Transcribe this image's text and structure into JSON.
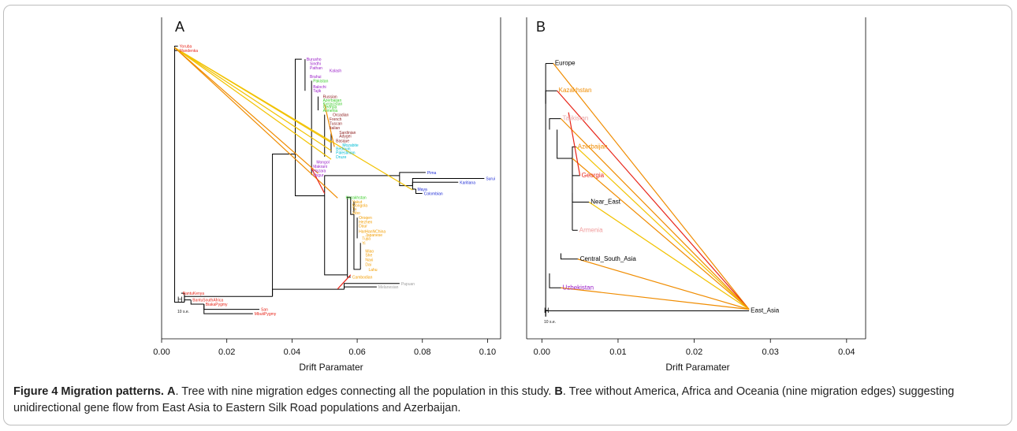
{
  "caption": {
    "title": "Figure 4 Migration patterns.",
    "a_label": "A",
    "a_text": ". Tree with nine migration edges connecting all the population in this study. ",
    "b_label": "B",
    "b_text": ". Tree without America, Africa and Oceania (nine migration edges) suggesting unidirectional gene flow from East Asia to Eastern Silk Road populations and Azerbaijan."
  },
  "colors": {
    "tree": "#000000",
    "edge_yellow": "#f2c200",
    "edge_orange": "#f08c00",
    "edge_red": "#e8261a",
    "africa": "#e8261a",
    "middle_east_europe": "#8b1a1a",
    "central_south_asia": "#9b20c8",
    "caucasus": "#3ccd2a",
    "oceania_cyan": "#00bcd4",
    "america": "#1d2bd6",
    "east_asia": "#f29d00",
    "grey": "#a0a0a0"
  },
  "chart_data": [
    {
      "type": "tree",
      "panel": "A",
      "xlabel": "Drift Paramater",
      "xlim": [
        0.0,
        0.104
      ],
      "ylim": [
        0,
        1
      ],
      "xticks": [
        0.0,
        0.02,
        0.04,
        0.06,
        0.08,
        0.1
      ],
      "xtick_labels": [
        "0.00",
        "0.02",
        "0.04",
        "0.06",
        "0.08",
        "0.10"
      ],
      "scale_label": "10 s.e.",
      "leaves": [
        {
          "name": "Yoruba",
          "x": 0.005,
          "y": 0.99,
          "color": "africa"
        },
        {
          "name": "Mandenka",
          "x": 0.005,
          "y": 0.975,
          "color": "africa"
        },
        {
          "name": "Burusho",
          "x": 0.044,
          "y": 0.945,
          "color": "central_south_asia"
        },
        {
          "name": "Sindhi",
          "x": 0.045,
          "y": 0.93,
          "color": "central_south_asia"
        },
        {
          "name": "Pathan",
          "x": 0.045,
          "y": 0.915,
          "color": "central_south_asia"
        },
        {
          "name": "Kalash",
          "x": 0.051,
          "y": 0.905,
          "color": "central_south_asia"
        },
        {
          "name": "Brahui",
          "x": 0.045,
          "y": 0.885,
          "color": "central_south_asia"
        },
        {
          "name": "Pakistan",
          "x": 0.046,
          "y": 0.87,
          "color": "caucasus"
        },
        {
          "name": "Balochi",
          "x": 0.046,
          "y": 0.85,
          "color": "central_south_asia"
        },
        {
          "name": "Tajik",
          "x": 0.046,
          "y": 0.835,
          "color": "central_south_asia"
        },
        {
          "name": "Russian",
          "x": 0.049,
          "y": 0.815,
          "color": "middle_east_europe"
        },
        {
          "name": "Azerbaijan",
          "x": 0.049,
          "y": 0.803,
          "color": "caucasus"
        },
        {
          "name": "Kyrgyzstan",
          "x": 0.049,
          "y": 0.791,
          "color": "caucasus"
        },
        {
          "name": "Georgia",
          "x": 0.049,
          "y": 0.779,
          "color": "caucasus"
        },
        {
          "name": "Armenia",
          "x": 0.049,
          "y": 0.767,
          "color": "caucasus"
        },
        {
          "name": "Orcadian",
          "x": 0.052,
          "y": 0.752,
          "color": "middle_east_europe"
        },
        {
          "name": "French",
          "x": 0.051,
          "y": 0.737,
          "color": "middle_east_europe"
        },
        {
          "name": "Tuscan",
          "x": 0.051,
          "y": 0.722,
          "color": "middle_east_europe"
        },
        {
          "name": "Italian",
          "x": 0.051,
          "y": 0.707,
          "color": "middle_east_europe"
        },
        {
          "name": "Sardinian",
          "x": 0.054,
          "y": 0.69,
          "color": "middle_east_europe"
        },
        {
          "name": "Adygei",
          "x": 0.054,
          "y": 0.678,
          "color": "middle_east_europe"
        },
        {
          "name": "Basque",
          "x": 0.053,
          "y": 0.662,
          "color": "middle_east_europe"
        },
        {
          "name": "Mozabite",
          "x": 0.055,
          "y": 0.646,
          "color": "oceania_cyan"
        },
        {
          "name": "Bedouin",
          "x": 0.053,
          "y": 0.634,
          "color": "oceania_cyan"
        },
        {
          "name": "Palestinian",
          "x": 0.053,
          "y": 0.62,
          "color": "oceania_cyan"
        },
        {
          "name": "Druze",
          "x": 0.053,
          "y": 0.606,
          "color": "oceania_cyan"
        },
        {
          "name": "Mongol",
          "x": 0.047,
          "y": 0.588,
          "color": "central_south_asia"
        },
        {
          "name": "Makrani",
          "x": 0.046,
          "y": 0.572,
          "color": "central_south_asia"
        },
        {
          "name": "Hazara",
          "x": 0.046,
          "y": 0.557,
          "color": "central_south_asia"
        },
        {
          "name": "Uygur",
          "x": 0.046,
          "y": 0.542,
          "color": "central_south_asia"
        },
        {
          "name": "Pima",
          "x": 0.081,
          "y": 0.551,
          "color": "america"
        },
        {
          "name": "Surui",
          "x": 0.099,
          "y": 0.53,
          "color": "america"
        },
        {
          "name": "Karitiana",
          "x": 0.091,
          "y": 0.517,
          "color": "america"
        },
        {
          "name": "Maya",
          "x": 0.078,
          "y": 0.493,
          "color": "america"
        },
        {
          "name": "Colombian",
          "x": 0.08,
          "y": 0.478,
          "color": "america"
        },
        {
          "name": "Kazakhstan",
          "x": 0.056,
          "y": 0.465,
          "color": "caucasus"
        },
        {
          "name": "Yakut",
          "x": 0.058,
          "y": 0.45,
          "color": "east_asia"
        },
        {
          "name": "Mongola",
          "x": 0.058,
          "y": 0.437,
          "color": "east_asia"
        },
        {
          "name": "Tu",
          "x": 0.058,
          "y": 0.424,
          "color": "east_asia"
        },
        {
          "name": "Xibo",
          "x": 0.058,
          "y": 0.411,
          "color": "east_asia"
        },
        {
          "name": "Oroqen",
          "x": 0.06,
          "y": 0.394,
          "color": "east_asia"
        },
        {
          "name": "Hezhen",
          "x": 0.06,
          "y": 0.38,
          "color": "east_asia"
        },
        {
          "name": "Daur",
          "x": 0.06,
          "y": 0.366,
          "color": "east_asia"
        },
        {
          "name": "Han",
          "x": 0.06,
          "y": 0.346,
          "color": "east_asia"
        },
        {
          "name": "HanNChina",
          "x": 0.062,
          "y": 0.346,
          "color": "east_asia"
        },
        {
          "name": "Japanese",
          "x": 0.062,
          "y": 0.334,
          "color": "east_asia"
        },
        {
          "name": "Tujia",
          "x": 0.061,
          "y": 0.322,
          "color": "east_asia"
        },
        {
          "name": "Yi",
          "x": 0.061,
          "y": 0.306,
          "color": "east_asia"
        },
        {
          "name": "Miao",
          "x": 0.062,
          "y": 0.278,
          "color": "east_asia"
        },
        {
          "name": "She",
          "x": 0.062,
          "y": 0.264,
          "color": "east_asia"
        },
        {
          "name": "Naxi",
          "x": 0.062,
          "y": 0.248,
          "color": "east_asia"
        },
        {
          "name": "Dai",
          "x": 0.062,
          "y": 0.232,
          "color": "east_asia"
        },
        {
          "name": "Lahu",
          "x": 0.063,
          "y": 0.214,
          "color": "east_asia"
        },
        {
          "name": "Cambodian",
          "x": 0.058,
          "y": 0.187,
          "color": "east_asia"
        },
        {
          "name": "Papuan",
          "x": 0.073,
          "y": 0.165,
          "color": "grey"
        },
        {
          "name": "Melanesian",
          "x": 0.066,
          "y": 0.153,
          "color": "grey"
        },
        {
          "name": "BantuKenya",
          "x": 0.006,
          "y": 0.131,
          "color": "africa"
        },
        {
          "name": "BantuSouthAfrica",
          "x": 0.009,
          "y": 0.108,
          "color": "africa"
        },
        {
          "name": "BiakaPygmy",
          "x": 0.013,
          "y": 0.093,
          "color": "africa"
        },
        {
          "name": "San",
          "x": 0.03,
          "y": 0.075,
          "color": "africa"
        },
        {
          "name": "MbutiPygmy",
          "x": 0.028,
          "y": 0.06,
          "color": "africa"
        }
      ],
      "migration_edges": [
        {
          "from": [
            0.004,
            0.985
          ],
          "to": [
            0.048,
            0.548
          ],
          "color": "edge_orange"
        },
        {
          "from": [
            0.004,
            0.985
          ],
          "to": [
            0.052,
            0.597
          ],
          "color": "edge_yellow"
        },
        {
          "from": [
            0.004,
            0.985
          ],
          "to": [
            0.052,
            0.627
          ],
          "color": "edge_yellow"
        },
        {
          "from": [
            0.004,
            0.985
          ],
          "to": [
            0.052,
            0.655
          ],
          "color": "edge_yellow"
        },
        {
          "from": [
            0.004,
            0.985
          ],
          "to": [
            0.077,
            0.49
          ],
          "color": "edge_yellow"
        },
        {
          "from": [
            0.004,
            0.985
          ],
          "to": [
            0.054,
            0.462
          ],
          "color": "edge_orange"
        },
        {
          "from": [
            0.046,
            0.565
          ],
          "to": [
            0.05,
            0.478
          ],
          "color": "edge_red"
        },
        {
          "from": [
            0.058,
            0.195
          ],
          "to": [
            0.054,
            0.146
          ],
          "color": "edge_red"
        },
        {
          "from": [
            0.05,
            0.788
          ],
          "to": [
            0.053,
            0.64
          ],
          "color": "edge_orange"
        }
      ]
    },
    {
      "type": "tree",
      "panel": "B",
      "xlabel": "Drift Paramater",
      "xlim": [
        -0.002,
        0.0425
      ],
      "ylim": [
        0,
        1
      ],
      "xticks": [
        0.0,
        0.01,
        0.02,
        0.03,
        0.04
      ],
      "xtick_labels": [
        "0.00",
        "0.01",
        "0.02",
        "0.03",
        "0.04"
      ],
      "scale_label": "10 s.e.",
      "leaves": [
        {
          "name": "Europe",
          "x": 0.0015,
          "y": 0.93,
          "color": "tree"
        },
        {
          "name": "Kazakhstan",
          "x": 0.002,
          "y": 0.835,
          "color": "edge_orange"
        },
        {
          "name": "Tajikistan",
          "x": 0.0025,
          "y": 0.738,
          "color": "#e8a8a8"
        },
        {
          "name": "Azerbaijan",
          "x": 0.0045,
          "y": 0.64,
          "color": "edge_orange"
        },
        {
          "name": "Georgia",
          "x": 0.005,
          "y": 0.54,
          "color": "edge_red"
        },
        {
          "name": "Near_East",
          "x": 0.0062,
          "y": 0.448,
          "color": "tree"
        },
        {
          "name": "Armenia",
          "x": 0.0047,
          "y": 0.35,
          "color": "#f09a9a"
        },
        {
          "name": "Central_South_Asia",
          "x": 0.0048,
          "y": 0.25,
          "color": "tree"
        },
        {
          "name": "Uzbekistan",
          "x": 0.0025,
          "y": 0.15,
          "color": "central_south_asia"
        },
        {
          "name": "East_Asia",
          "x": 0.0272,
          "y": 0.07,
          "color": "tree"
        }
      ],
      "migration_edges": [
        {
          "from": [
            0.0272,
            0.075
          ],
          "to": [
            0.0015,
            0.93
          ],
          "color": "edge_orange"
        },
        {
          "from": [
            0.0272,
            0.075
          ],
          "to": [
            0.002,
            0.835
          ],
          "color": "edge_red"
        },
        {
          "from": [
            0.0272,
            0.075
          ],
          "to": [
            0.0025,
            0.738
          ],
          "color": "edge_orange"
        },
        {
          "from": [
            0.0272,
            0.075
          ],
          "to": [
            0.0045,
            0.64
          ],
          "color": "edge_yellow"
        },
        {
          "from": [
            0.0272,
            0.075
          ],
          "to": [
            0.004,
            0.6
          ],
          "color": "edge_orange"
        },
        {
          "from": [
            0.0272,
            0.075
          ],
          "to": [
            0.0062,
            0.448
          ],
          "color": "edge_yellow"
        },
        {
          "from": [
            0.0272,
            0.075
          ],
          "to": [
            0.0047,
            0.25
          ],
          "color": "edge_orange"
        },
        {
          "from": [
            0.0272,
            0.075
          ],
          "to": [
            0.0025,
            0.15
          ],
          "color": "edge_orange"
        },
        {
          "from": [
            0.0035,
            0.76
          ],
          "to": [
            0.005,
            0.54
          ],
          "color": "edge_red"
        }
      ]
    }
  ]
}
